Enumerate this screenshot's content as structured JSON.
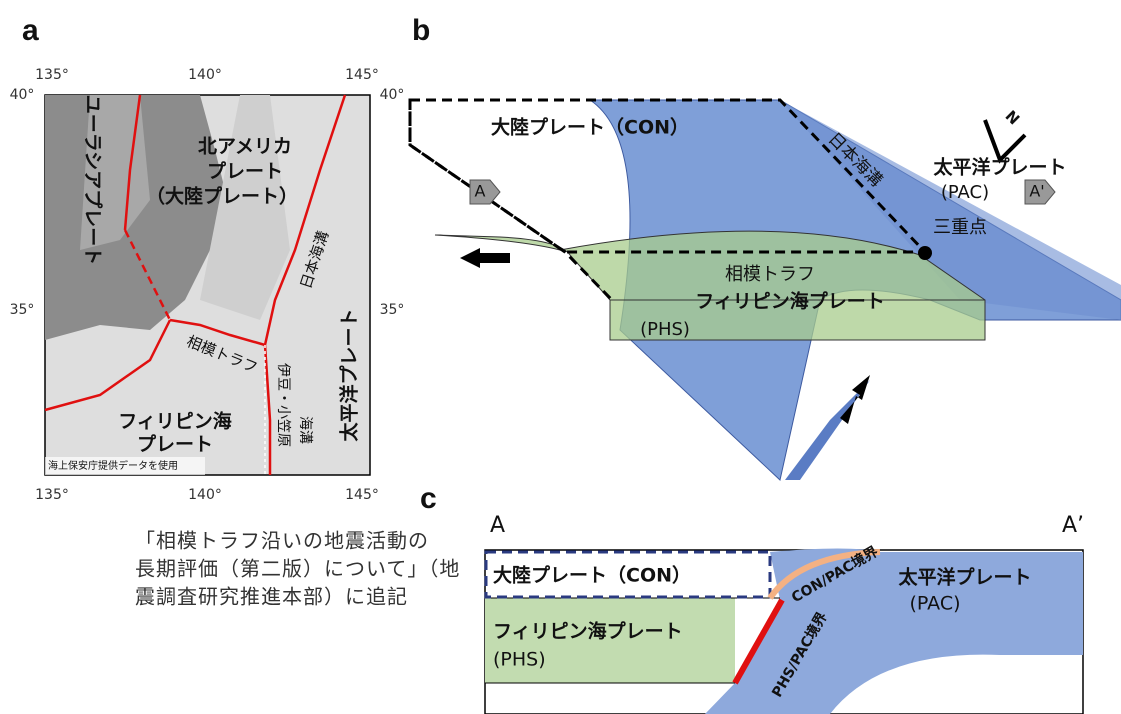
{
  "panels": {
    "a": {
      "label": "a",
      "top_ticks": [
        "135°",
        "140°",
        "145°"
      ],
      "bottom_ticks": [
        "135°",
        "140°",
        "145°"
      ],
      "left_ticks": [
        "40°",
        "35°"
      ],
      "right_ticks": [
        "40°",
        "35°"
      ],
      "labels": {
        "eurasia": "ユーラシアプレート",
        "north_america": "北アメリカ",
        "north_america_2": "プレート",
        "continental": "（大陸プレート）",
        "japan_trench": "日本海溝",
        "sagami": "相模トラフ",
        "izu": "伊豆・小笠原",
        "izu_2": "海溝",
        "pacific": "太平洋プレート",
        "philippine": "フィリピン海",
        "philippine_2": "プレート",
        "credit": "海上保安庁提供データを使用"
      },
      "caption": [
        "「相模トラフ沿いの地震活動の",
        "長期評価（第二版）について」（地",
        "震調査研究推進本部）に追記"
      ]
    },
    "b": {
      "label": "b",
      "continental": "大陸プレート（CON）",
      "japan_trench": "日本海溝",
      "north": "N",
      "pacific": "太平洋プレート",
      "pacific_code": "(PAC)",
      "a": "A",
      "a_prime": "A'",
      "triple": "三重点",
      "sagami": "相模トラフ",
      "philippine": "フィリピン海プレート",
      "philippine_code": "(PHS)"
    },
    "c": {
      "label": "c",
      "a": "A",
      "a_prime": "A’",
      "continental": "大陸プレート（CON）",
      "con_pac": "CON/PAC境界",
      "pacific": "太平洋プレート",
      "pacific_code": "(PAC)",
      "philippine": "フィリピン海プレート",
      "philippine_code": "(PHS)",
      "phs_pac": "PHS/PAC境界"
    }
  }
}
